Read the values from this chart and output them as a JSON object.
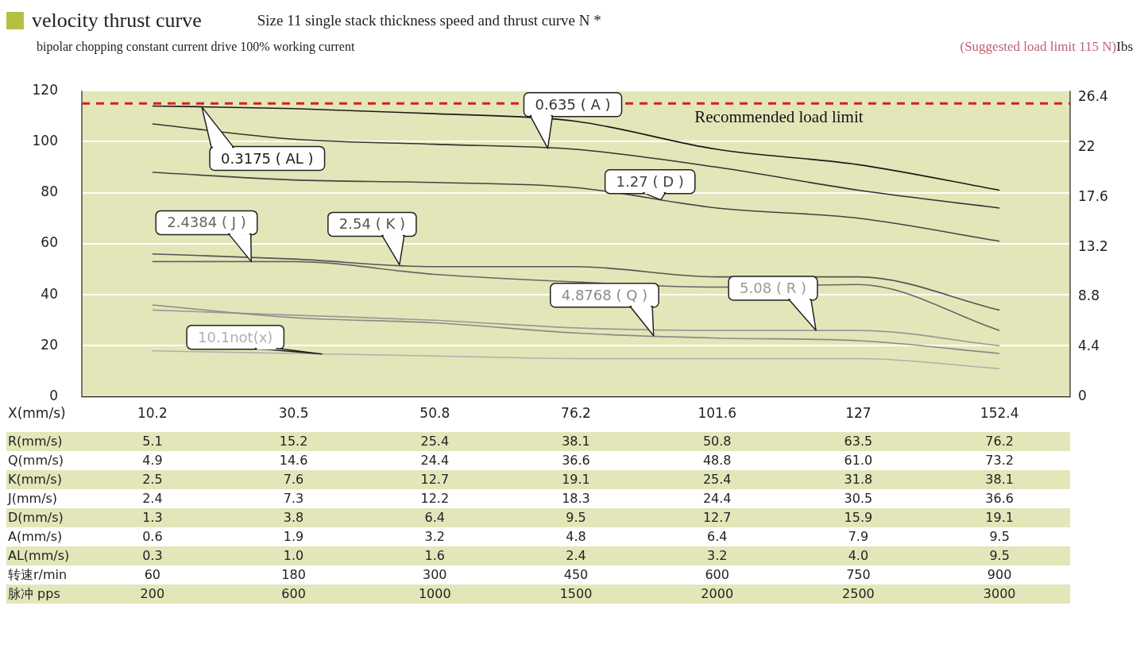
{
  "chart_data": {
    "type": "line",
    "title": "velocity thrust curve",
    "subtitle": "Size 11 single stack thickness speed and thrust curve N *",
    "xlabel": "X(mm/s)",
    "y2label": "Ibs",
    "categories": [
      "10.2",
      "30.5",
      "50.8",
      "76.2",
      "101.6",
      "127",
      "152.4"
    ],
    "series": [
      {
        "name": "0.3175 ( AL )",
        "color": "#1a1a1a",
        "values": [
          114,
          113,
          111,
          108,
          97,
          91,
          81
        ]
      },
      {
        "name": "0.635 ( A )",
        "color": "#333333",
        "values": [
          107,
          101,
          99,
          97,
          90,
          81,
          74
        ]
      },
      {
        "name": "1.27 ( D )",
        "color": "#444444",
        "values": [
          88,
          85,
          84,
          82,
          74,
          70,
          61
        ]
      },
      {
        "name": "2.4384 ( J )",
        "color": "#666666",
        "values": [
          53,
          53,
          48,
          45,
          43,
          44,
          26
        ]
      },
      {
        "name": "2.54 ( K )",
        "color": "#555555",
        "values": [
          56,
          54,
          51,
          51,
          47,
          47,
          34
        ]
      },
      {
        "name": "4.8768 ( Q )",
        "color": "#8a8a8a",
        "values": [
          36,
          31,
          29,
          25,
          23,
          22,
          17
        ]
      },
      {
        "name": "5.08 ( R )",
        "color": "#999999",
        "values": [
          34,
          32,
          30,
          27,
          26,
          26,
          20
        ]
      },
      {
        "name": "10.1not(x)",
        "color": "#b0b0b0",
        "values": [
          18,
          17,
          16,
          15,
          15,
          15,
          11
        ]
      }
    ],
    "ylim": [
      0,
      120
    ],
    "yticks": [
      0,
      20,
      40,
      60,
      80,
      100,
      120
    ],
    "y2lim": [
      0,
      27
    ],
    "y2ticks": [
      0,
      4.4,
      8.8,
      13.2,
      17.6,
      22,
      26.4
    ],
    "grid": "y",
    "legend": false,
    "marker": "none",
    "line_style": "solid",
    "ref_lines": [
      {
        "axis": "y",
        "value": 115,
        "label": "Recommended load limit",
        "color": "#d42020",
        "line_style": "dashed"
      }
    ],
    "annotations": [
      "bipolar chopping constant current drive 100% working current",
      "(Suggested load limit 115 N)",
      "R(mm/s)\t5.1\t15.2\t25.4\t38.1\t50.8\t63.5\t76.2",
      "Q(mm/s)\t4.9\t14.6\t24.4\t36.6\t48.8\t61.0\t73.2",
      "K(mm/s)\t2.5\t7.6\t12.7\t19.1\t25.4\t31.8\t38.1",
      "J(mm/s)\t2.4\t7.3\t12.2\t18.3\t24.4\t30.5\t36.6",
      "D(mm/s)\t1.3\t3.8\t6.4\t9.5\t12.7\t15.9\t19.1",
      "A(mm/s)\t0.6\t1.9\t3.2\t4.8\t6.4\t7.9\t9.5",
      "AL(mm/s)\t0.3\t1.0\t1.6\t2.4\t3.2\t4.0\t9.5",
      "转速r/min\t60\t180\t300\t450\t600\t750\t900",
      "脉冲 pps\t200\t600\t1000\t1500\t2000\t2500\t3000"
    ]
  }
}
